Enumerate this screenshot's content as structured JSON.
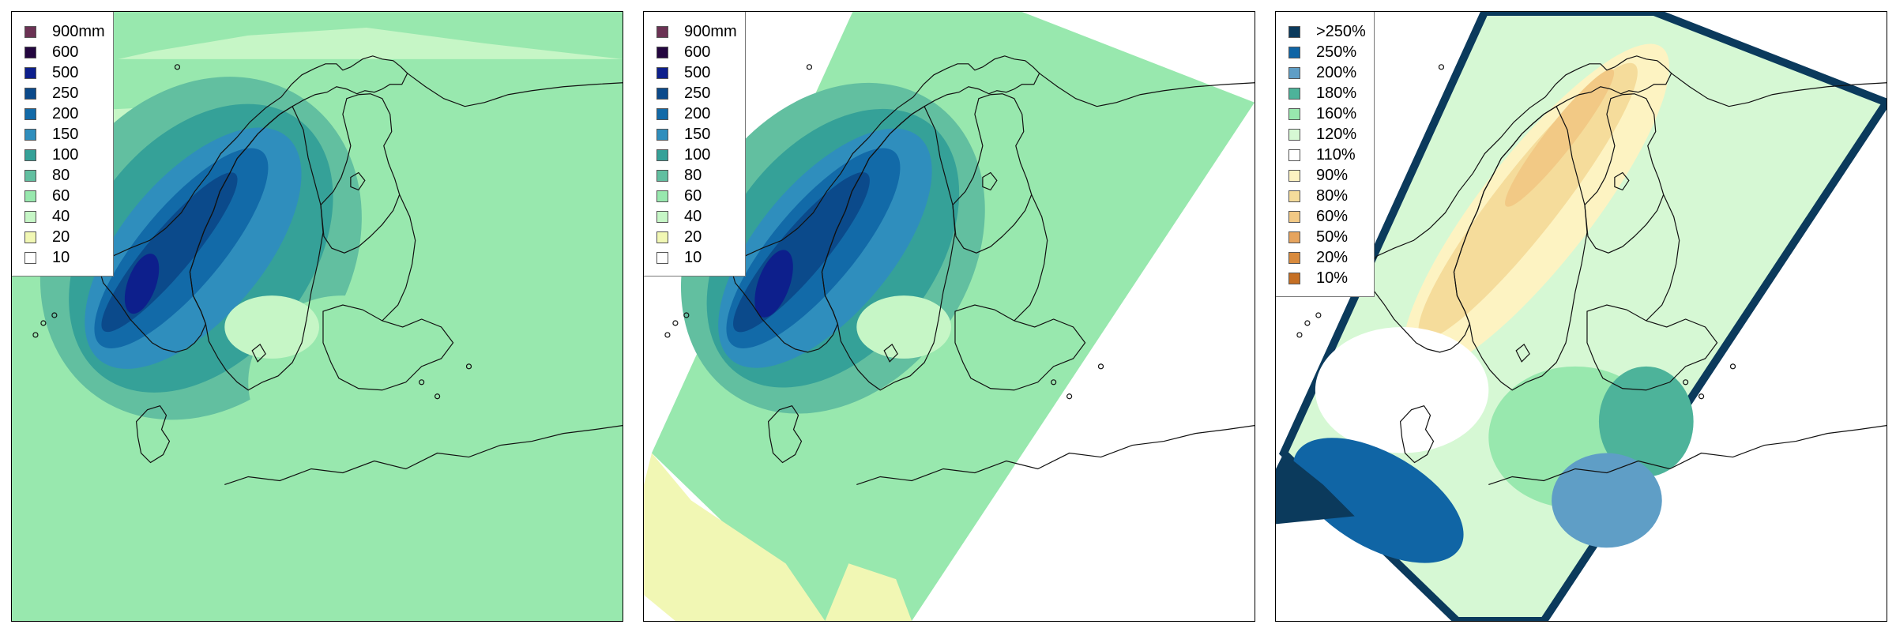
{
  "panels": [
    {
      "id": "p1",
      "domain": "full",
      "palette": "precip",
      "legend": [
        {
          "label": "900mm",
          "color": "#6b3254"
        },
        {
          "label": "600",
          "color": "#23063f"
        },
        {
          "label": "500",
          "color": "#0d1f8c"
        },
        {
          "label": "250",
          "color": "#0b4a8b"
        },
        {
          "label": "200",
          "color": "#126aa8"
        },
        {
          "label": "150",
          "color": "#2f8ebd"
        },
        {
          "label": "100",
          "color": "#35a198"
        },
        {
          "label": "80",
          "color": "#62bfa0"
        },
        {
          "label": "60",
          "color": "#98e8ae"
        },
        {
          "label": "40",
          "color": "#c6f6c6"
        },
        {
          "label": "20",
          "color": "#f1f7b4"
        },
        {
          "label": "10",
          "color": "#ffffff"
        }
      ]
    },
    {
      "id": "p2",
      "domain": "rotated",
      "palette": "precip",
      "legend": [
        {
          "label": "900mm",
          "color": "#6b3254"
        },
        {
          "label": "600",
          "color": "#23063f"
        },
        {
          "label": "500",
          "color": "#0d1f8c"
        },
        {
          "label": "250",
          "color": "#0b4a8b"
        },
        {
          "label": "200",
          "color": "#126aa8"
        },
        {
          "label": "150",
          "color": "#2f8ebd"
        },
        {
          "label": "100",
          "color": "#35a198"
        },
        {
          "label": "80",
          "color": "#62bfa0"
        },
        {
          "label": "60",
          "color": "#98e8ae"
        },
        {
          "label": "40",
          "color": "#c6f6c6"
        },
        {
          "label": "20",
          "color": "#f1f7b4"
        },
        {
          "label": "10",
          "color": "#ffffff"
        }
      ]
    },
    {
      "id": "p3",
      "domain": "rotated",
      "palette": "ratio",
      "legend": [
        {
          "label": ">250%",
          "color": "#0b3a5c"
        },
        {
          "label": "250%",
          "color": "#1065a5"
        },
        {
          "label": "200%",
          "color": "#5f9ec6"
        },
        {
          "label": "180%",
          "color": "#4db39a"
        },
        {
          "label": "160%",
          "color": "#98e8ae"
        },
        {
          "label": "120%",
          "color": "#d6f8d4"
        },
        {
          "label": "110%",
          "color": "#ffffff"
        },
        {
          "label": "90%",
          "color": "#fdf3c2"
        },
        {
          "label": "80%",
          "color": "#f5dc9b"
        },
        {
          "label": "60%",
          "color": "#f2c985"
        },
        {
          "label": "50%",
          "color": "#e6a45e"
        },
        {
          "label": "20%",
          "color": "#d88a3d"
        },
        {
          "label": "10%",
          "color": "#c56f24"
        }
      ]
    }
  ]
}
